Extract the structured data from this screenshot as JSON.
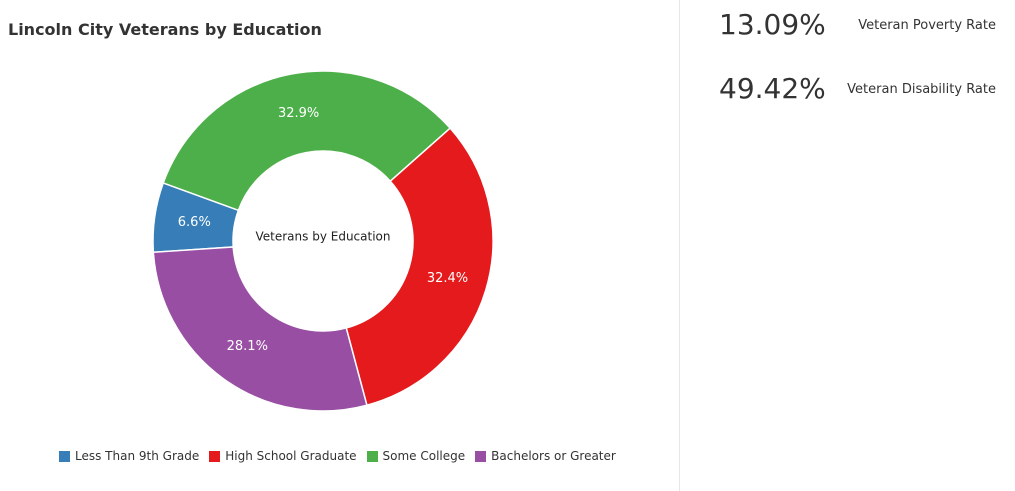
{
  "chart_data": {
    "type": "pie",
    "title": "Lincoln City Veterans by Education",
    "center_label": "Veterans by Education",
    "categories": [
      "Less Than 9th Grade",
      "High School Graduate",
      "Some College",
      "Bachelors or Greater"
    ],
    "values": [
      6.6,
      32.4,
      32.9,
      28.1
    ],
    "colors": [
      "#377eb8",
      "#e41a1c",
      "#4daf4a",
      "#984ea3"
    ],
    "labels": [
      "6.6%",
      "32.4%",
      "32.9%",
      "28.1%"
    ],
    "legend": "bottom"
  },
  "stats": [
    {
      "value": "13.09%",
      "label": "Veteran Poverty Rate"
    },
    {
      "value": "49.42%",
      "label": "Veteran Disability Rate"
    }
  ]
}
